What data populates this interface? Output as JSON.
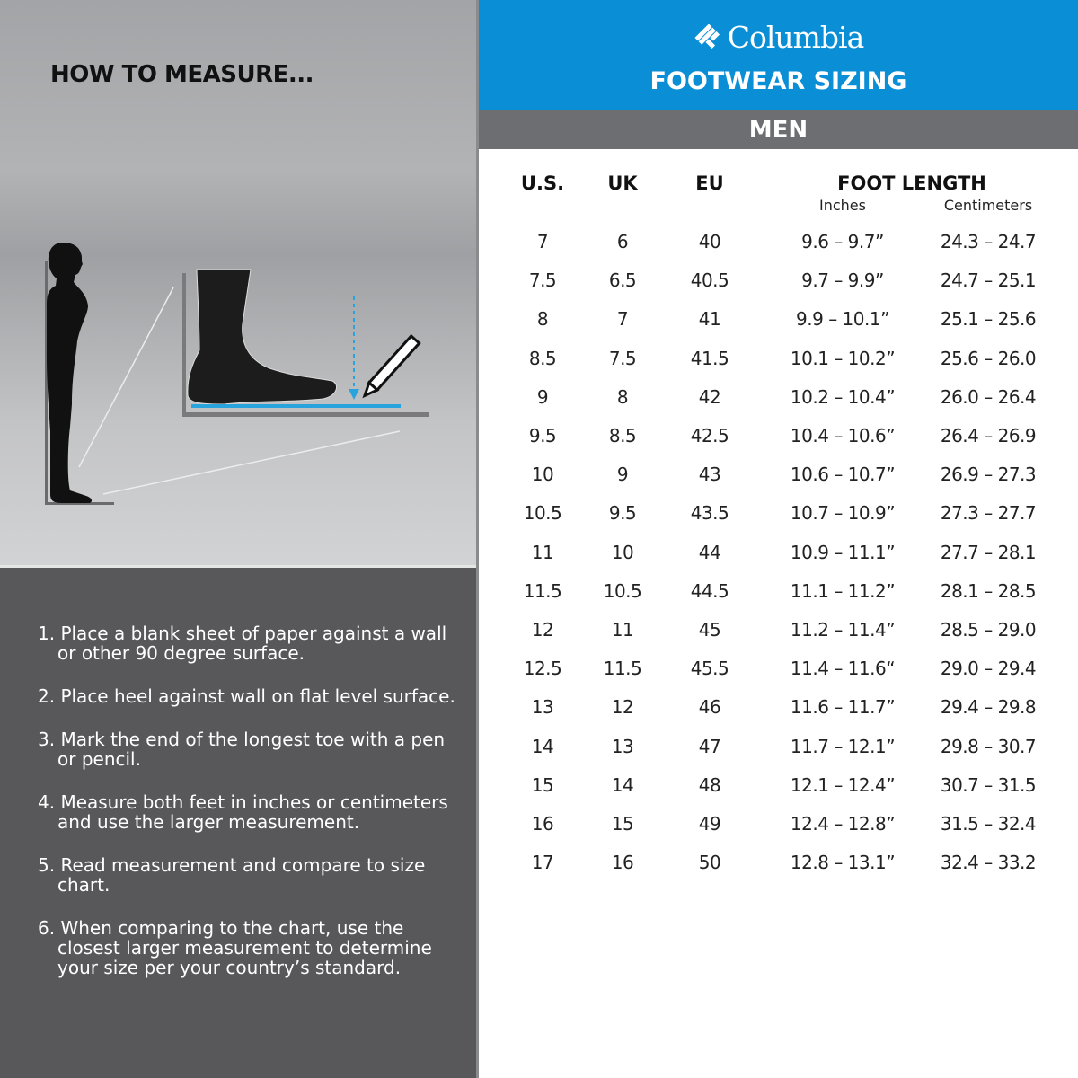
{
  "left": {
    "title": "HOW TO MEASURE...",
    "steps": [
      "1. Place a blank sheet of paper against a wall or other 90 degree surface.",
      "2. Place heel against wall on flat level surface.",
      "3. Mark the end of the longest toe with a pen or pencil.",
      "4. Measure both feet in inches or centimeters and use the larger measurement.",
      "5. Read measurement and compare to size chart.",
      "6. When comparing to the chart, use the closest larger measurement to determine your size per your country’s standard."
    ]
  },
  "header": {
    "brand": "Columbia",
    "title": "FOOTWEAR SIZING",
    "section": "MEN",
    "blue": "#0a8fd6",
    "gray": "#6d6e71"
  },
  "table": {
    "columns": [
      "U.S.",
      "UK",
      "EU",
      "FOOT LENGTH"
    ],
    "subcolumns": [
      "Inches",
      "Centimeters"
    ],
    "rows": [
      [
        "7",
        "6",
        "40",
        "9.6 – 9.7”",
        "24.3 – 24.7"
      ],
      [
        "7.5",
        "6.5",
        "40.5",
        "9.7 – 9.9”",
        "24.7 – 25.1"
      ],
      [
        "8",
        "7",
        "41",
        "9.9 – 10.1”",
        "25.1 – 25.6"
      ],
      [
        "8.5",
        "7.5",
        "41.5",
        "10.1 – 10.2”",
        "25.6 – 26.0"
      ],
      [
        "9",
        "8",
        "42",
        "10.2 – 10.4”",
        "26.0 – 26.4"
      ],
      [
        "9.5",
        "8.5",
        "42.5",
        "10.4 – 10.6”",
        "26.4 – 26.9"
      ],
      [
        "10",
        "9",
        "43",
        "10.6 – 10.7”",
        "26.9 – 27.3"
      ],
      [
        "10.5",
        "9.5",
        "43.5",
        "10.7 – 10.9”",
        "27.3 – 27.7"
      ],
      [
        "11",
        "10",
        "44",
        "10.9 – 11.1”",
        "27.7 – 28.1"
      ],
      [
        "11.5",
        "10.5",
        "44.5",
        "11.1 – 11.2”",
        "28.1 – 28.5"
      ],
      [
        "12",
        "11",
        "45",
        "11.2 – 11.4”",
        "28.5 – 29.0"
      ],
      [
        "12.5",
        "11.5",
        "45.5",
        "11.4 – 11.6“",
        "29.0 – 29.4"
      ],
      [
        "13",
        "12",
        "46",
        "11.6 – 11.7”",
        "29.4 – 29.8"
      ],
      [
        "14",
        "13",
        "47",
        "11.7 – 12.1”",
        "29.8 – 30.7"
      ],
      [
        "15",
        "14",
        "48",
        "12.1 – 12.4”",
        "30.7 – 31.5"
      ],
      [
        "16",
        "15",
        "49",
        "12.4 – 12.8”",
        "31.5 – 32.4"
      ],
      [
        "17",
        "16",
        "50",
        "12.8 – 13.1”",
        "32.4 – 33.2"
      ]
    ]
  }
}
